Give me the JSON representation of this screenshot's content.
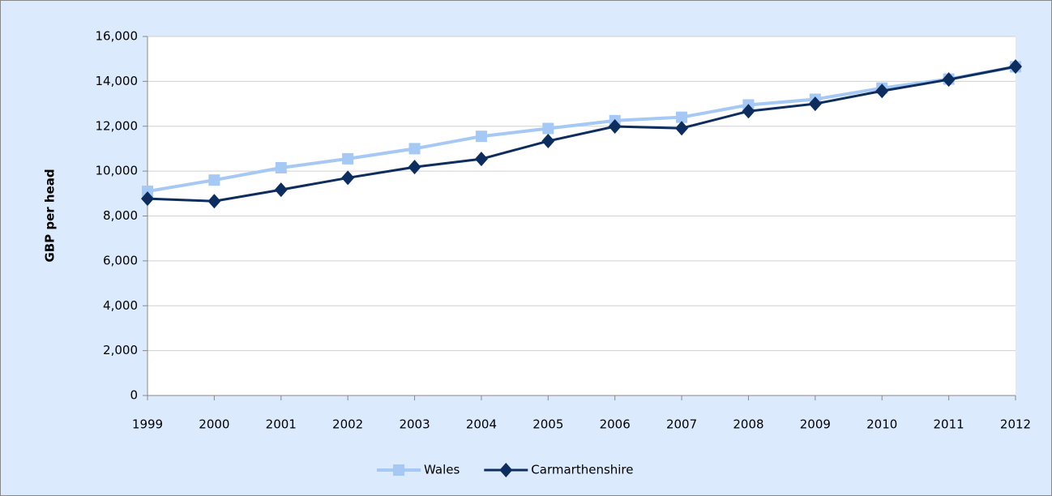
{
  "chart_data": {
    "type": "line",
    "y_label": "GBP per head",
    "categories": [
      "1999",
      "2000",
      "2001",
      "2002",
      "2003",
      "2004",
      "2005",
      "2006",
      "2007",
      "2008",
      "2009",
      "2010",
      "2011",
      "2012"
    ],
    "series": [
      {
        "name": "Wales",
        "color": "#a6c8f5",
        "marker": "square",
        "values": [
          9100,
          9600,
          10150,
          10550,
          11000,
          11550,
          11900,
          12250,
          12400,
          12950,
          13200,
          13700,
          14100,
          14650
        ]
      },
      {
        "name": "Carmarthenshire",
        "color": "#0d2d5e",
        "marker": "diamond",
        "values": [
          8770,
          8660,
          9170,
          9700,
          10180,
          10540,
          11340,
          11990,
          11910,
          12670,
          13000,
          13570,
          14080,
          14660
        ]
      }
    ],
    "ylim": [
      0,
      16000
    ],
    "yticks": [
      0,
      {
        "value": 2000,
        "label": "2,000"
      },
      {
        "value": 4000,
        "label": "4,000"
      },
      {
        "value": 6000,
        "label": "6,000"
      },
      {
        "value": 8000,
        "label": "8,000"
      },
      {
        "value": 10000,
        "label": "10,000"
      },
      {
        "value": 12000,
        "label": "12,000"
      },
      {
        "value": 14000,
        "label": "14,000"
      },
      {
        "value": 16000,
        "label": "16,000"
      }
    ],
    "grid": true,
    "legend": "bottom"
  }
}
